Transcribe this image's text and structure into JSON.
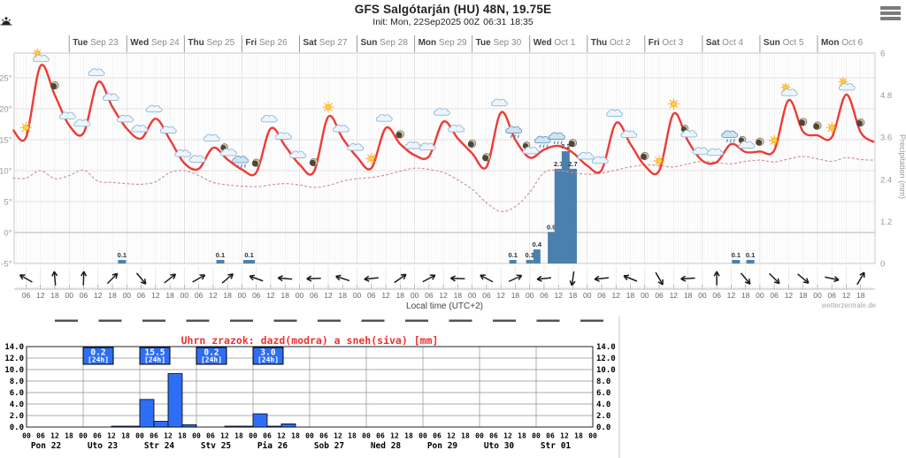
{
  "header": {
    "title": "GFS Salgótarján (HU) 48N, 19.75E",
    "init": "Init: Mon, 22Sep2025 00Z",
    "sunrise_time": "06:31",
    "sunset_time": "18:35"
  },
  "icons": {
    "menu": "hamburger-menu-icon",
    "sunrise": "sunrise-sun-icon",
    "sunset": "sunset-sun-icon"
  },
  "watermark": "wetterzentrale.de",
  "chart_data": [
    {
      "type": "line",
      "title": "GFS meteogram",
      "x_start": "Mon Sep 22 06:00",
      "x_step_hours": 6,
      "x_end": "Mon Oct 6 18:00",
      "xlabel": "Local time (UTC+2)",
      "days": [
        {
          "dow": "Tue",
          "date": "Sep 23"
        },
        {
          "dow": "Wed",
          "date": "Sep 24"
        },
        {
          "dow": "Thu",
          "date": "Sep 25"
        },
        {
          "dow": "Fri",
          "date": "Sep 26"
        },
        {
          "dow": "Sat",
          "date": "Sep 27"
        },
        {
          "dow": "Sun",
          "date": "Sep 28"
        },
        {
          "dow": "Mon",
          "date": "Sep 29"
        },
        {
          "dow": "Tue",
          "date": "Sep 30"
        },
        {
          "dow": "Wed",
          "date": "Oct 1"
        },
        {
          "dow": "Thu",
          "date": "Oct 2"
        },
        {
          "dow": "Fri",
          "date": "Oct 3"
        },
        {
          "dow": "Sat",
          "date": "Oct 4"
        },
        {
          "dow": "Sun",
          "date": "Oct 5"
        },
        {
          "dow": "Mon",
          "date": "Oct 6"
        }
      ],
      "y_left": {
        "ticks": [
          "25°",
          "20°",
          "15°",
          "10°",
          "5°",
          "0°",
          "-5°"
        ],
        "values": [
          25,
          20,
          15,
          10,
          5,
          0,
          -5
        ]
      },
      "y_right": {
        "label": "Precipitation (mm)",
        "ticks": [
          "6",
          "4.8",
          "3.6",
          "2.4",
          "1.2",
          "0"
        ],
        "values": [
          6,
          4.8,
          3.6,
          2.4,
          1.2,
          0
        ]
      },
      "time_ticks_pattern": [
        "00",
        "06",
        "12",
        "18"
      ],
      "series": [
        {
          "name": "temperature_2m",
          "color": "#ee3b35",
          "style": "solid",
          "values": [
            15.4,
            26.9,
            22.2,
            17.3,
            16.1,
            24.3,
            20.3,
            16.8,
            15.2,
            18.4,
            15.0,
            11.2,
            10.3,
            13.7,
            11.8,
            10.2,
            9.7,
            16.8,
            14.0,
            11.0,
            9.8,
            18.7,
            15.2,
            12.2,
            10.4,
            16.9,
            14.3,
            12.5,
            12.3,
            17.9,
            15.2,
            12.8,
            10.6,
            19.4,
            15.0,
            12.1,
            13.4,
            14.0,
            12.9,
            10.8,
            10.1,
            17.7,
            14.3,
            10.8,
            10.0,
            19.2,
            14.8,
            11.6,
            11.4,
            14.3,
            13.0,
            13.1,
            13.3,
            21.4,
            16.3,
            15.7,
            15.4,
            22.3,
            16.2
          ]
        },
        {
          "name": "dew_point",
          "color": "#c9908b",
          "style": "dashed",
          "values": [
            8.8,
            10.0,
            8.7,
            9.2,
            10.1,
            8.3,
            8.1,
            7.9,
            7.8,
            8.2,
            9.7,
            10.0,
            9.2,
            8.1,
            7.7,
            7.5,
            7.4,
            7.7,
            7.9,
            7.7,
            7.3,
            7.6,
            8.3,
            8.7,
            8.9,
            9.3,
            9.9,
            10.4,
            10.2,
            9.7,
            8.5,
            7.0,
            4.8,
            3.4,
            4.2,
            6.5,
            9.7,
            10.0,
            9.7,
            9.4,
            9.6,
            10.1,
            10.6,
            10.9,
            10.8,
            10.6,
            11.1,
            11.5,
            11.3,
            11.1,
            11.5,
            11.7,
            11.4,
            11.9,
            12.3,
            11.9,
            11.5,
            12.1,
            11.8
          ]
        }
      ],
      "precip_bars": {
        "color": "#4a80ad",
        "unit": "mm",
        "points": [
          {
            "t": 40,
            "v": 0.1,
            "w": 9
          },
          {
            "t": 81,
            "v": 0.1,
            "w": 9
          },
          {
            "t": 93,
            "v": 0.1,
            "w": 13
          },
          {
            "t": 203,
            "v": 0.1,
            "w": 8
          },
          {
            "t": 210,
            "v": 0.1,
            "w": 8
          },
          {
            "t": 213,
            "v": 0.4,
            "w": 8
          },
          {
            "t": 219,
            "v": 0.9,
            "w": 8
          },
          {
            "t": 222,
            "v": 2.7,
            "w": 9
          },
          {
            "t": 225,
            "v": 3.2,
            "w": 9
          },
          {
            "t": 228,
            "v": 2.7,
            "w": 9
          },
          {
            "t": 296,
            "v": 0.1,
            "w": 9
          },
          {
            "t": 302,
            "v": 0.1,
            "w": 9
          }
        ]
      },
      "weather_icons": [
        "sun",
        "sun-cloud",
        "moon",
        "cloud",
        "cloud",
        "cloud",
        "cloud",
        "cloud",
        "cloud",
        "cloud",
        "cloud",
        "cloud",
        "cloud",
        "cloud",
        "moon-cloud",
        "rain-cloud",
        "moon",
        "cloud",
        "cloud",
        "cloud",
        "moon",
        "sun",
        "cloud",
        "cloud",
        "sun",
        "cloud",
        "moon",
        "cloud",
        "cloud",
        "cloud",
        "cloud",
        "moon",
        "moon",
        "cloud",
        "rain-cloud",
        "moon-cloud",
        "rain-cloud",
        "rain-cloud",
        "moon",
        "cloud",
        "cloud",
        "cloud",
        "cloud",
        "moon",
        "sun",
        "sun",
        "moon-cloud",
        "cloud",
        "cloud",
        "rain-cloud",
        "moon-cloud",
        "moon",
        "sun",
        "sun-cloud",
        "moon",
        "moon",
        "sun",
        "sun-cloud",
        "moon"
      ],
      "wind_arrows_deg": [
        150,
        95,
        88,
        45,
        -50,
        38,
        30,
        40,
        160,
        175,
        182,
        162,
        186,
        35,
        28,
        178,
        152,
        25,
        186,
        262,
        186,
        158,
        -60,
        184,
        90,
        -50,
        -45,
        -40,
        -12,
        60
      ]
    },
    {
      "type": "bar",
      "title": "Uhrn zrazok: dazd(modra) a sneh(siva) [mm]",
      "title_color": "#f03030",
      "ylim": [
        0,
        14
      ],
      "yticks": [
        "14.0",
        "12.0",
        "10.0",
        "8.0",
        "6.0",
        "4.0",
        "2.0",
        "0.0"
      ],
      "ytick_values": [
        14,
        12,
        10,
        8,
        6,
        4,
        2,
        0
      ],
      "days": [
        "Pon 22",
        "Uto 23",
        "Str 24",
        "Stv 25",
        "Pia 26",
        "Sob 27",
        "Ned 28",
        "Pon 29",
        "Uto 30",
        "Str 01"
      ],
      "hour_labels": [
        "00",
        "06",
        "12",
        "18"
      ],
      "final_hour_label": "00",
      "bar_color": "#2e6ef5",
      "bars": [
        {
          "day": 1,
          "hour": 12,
          "v": 0.1
        },
        {
          "day": 1,
          "hour": 18,
          "v": 0.1
        },
        {
          "day": 2,
          "hour": 0,
          "v": 4.8
        },
        {
          "day": 2,
          "hour": 6,
          "v": 1.0
        },
        {
          "day": 2,
          "hour": 12,
          "v": 9.3
        },
        {
          "day": 2,
          "hour": 18,
          "v": 0.4
        },
        {
          "day": 3,
          "hour": 12,
          "v": 0.1
        },
        {
          "day": 3,
          "hour": 18,
          "v": 0.1
        },
        {
          "day": 4,
          "hour": 0,
          "v": 2.3
        },
        {
          "day": 4,
          "hour": 6,
          "v": 0.15
        },
        {
          "day": 4,
          "hour": 12,
          "v": 0.55
        }
      ],
      "sum_boxes": [
        {
          "day": 1,
          "value": "0.2",
          "period": "[24h]"
        },
        {
          "day": 2,
          "value": "15.5",
          "period": "[24h]"
        },
        {
          "day": 3,
          "value": "0.2",
          "period": "[24h]"
        },
        {
          "day": 4,
          "value": "3.0",
          "period": "[24h]"
        }
      ]
    }
  ]
}
